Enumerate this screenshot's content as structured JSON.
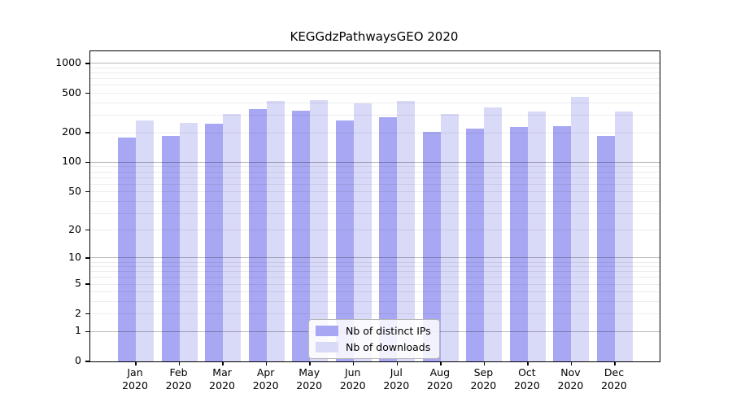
{
  "title": "KEGGdzPathwaysGEO 2020",
  "chart_data": {
    "type": "bar",
    "title": "KEGGdzPathwaysGEO 2020",
    "categories": [
      "Jan 2020",
      "Feb 2020",
      "Mar 2020",
      "Apr 2020",
      "May 2020",
      "Jun 2020",
      "Jul 2020",
      "Aug 2020",
      "Sep 2020",
      "Oct 2020",
      "Nov 2020",
      "Dec 2020"
    ],
    "series": [
      {
        "name": "Nb of distinct IPs",
        "color": "#a7a7f3",
        "values": [
          179,
          186,
          248,
          346,
          331,
          266,
          285,
          204,
          218,
          227,
          232,
          187
        ]
      },
      {
        "name": "Nb of downloads",
        "color": "#d9d9f8",
        "values": [
          267,
          253,
          307,
          422,
          428,
          393,
          421,
          311,
          360,
          330,
          464,
          325
        ]
      }
    ],
    "yaxis": {
      "scale": "log1p",
      "tick_labels": [
        0,
        1,
        2,
        5,
        10,
        20,
        50,
        100,
        200,
        500,
        1000
      ],
      "ymax": 1320
    },
    "grid": {
      "major_lines": [
        1,
        10,
        100,
        1000
      ],
      "minor_lines": [
        2,
        3,
        4,
        5,
        6,
        7,
        8,
        9,
        20,
        30,
        40,
        50,
        60,
        70,
        80,
        90,
        200,
        300,
        400,
        500,
        600,
        700,
        800,
        900
      ]
    },
    "legend_position": "lower center inside plot"
  },
  "colors": {
    "distinct_ips": "#a7a7f3",
    "downloads": "#d9d9f8",
    "major_grid": "rgba(0,0,0,0.28)",
    "minor_grid": "rgba(0,0,0,0.07)"
  }
}
